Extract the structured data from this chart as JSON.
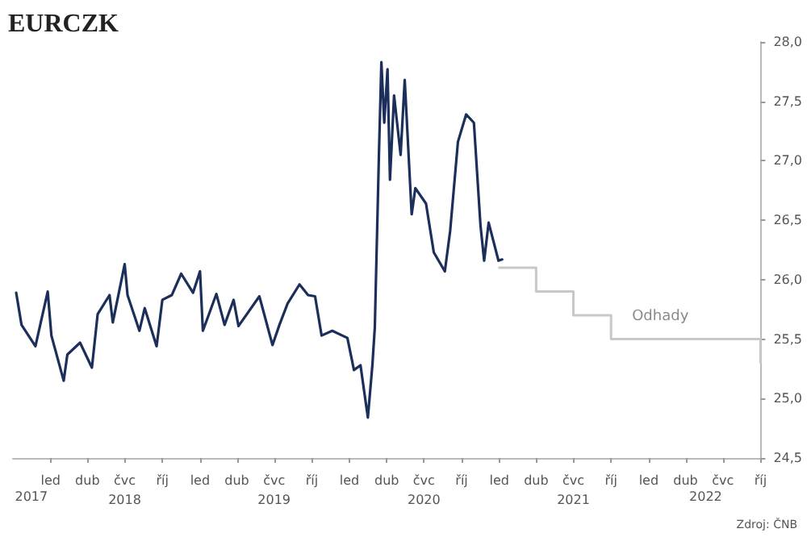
{
  "chart_data": {
    "type": "line",
    "title": "EURCZK",
    "annotations": [
      "Zdroj: ČNB"
    ],
    "xlim": [
      "2017-10-01",
      "2022-10-01"
    ],
    "xticks": [
      {
        "value": "2018-01-01",
        "label": "led"
      },
      {
        "value": "2018-04-01",
        "label": "dub"
      },
      {
        "value": "2018-07-01",
        "label": "čvc\n2018"
      },
      {
        "value": "2018-10-01",
        "label": "říj"
      },
      {
        "value": "2019-01-01",
        "label": "led"
      },
      {
        "value": "2019-04-01",
        "label": "dub"
      },
      {
        "value": "2019-07-01",
        "label": "čvc\n2019"
      },
      {
        "value": "2019-10-01",
        "label": "říj"
      },
      {
        "value": "2020-01-01",
        "label": "led"
      },
      {
        "value": "2020-04-01",
        "label": "dub"
      },
      {
        "value": "2020-07-01",
        "label": "čvc\n2020"
      },
      {
        "value": "2020-10-01",
        "label": "říj"
      },
      {
        "value": "2021-01-01",
        "label": "led"
      },
      {
        "value": "2021-04-01",
        "label": "dub"
      },
      {
        "value": "2021-07-01",
        "label": "čvc\n2021"
      },
      {
        "value": "2021-10-01",
        "label": "říj"
      },
      {
        "value": "2022-01-01",
        "label": "led"
      },
      {
        "value": "2022-04-01",
        "label": "dub"
      },
      {
        "value": "2022-07-01",
        "label": "čvc"
      },
      {
        "value": "2022-10-01",
        "label": "říj"
      }
    ],
    "x2lim": [
      "2017-10-01",
      "2022-10-01"
    ],
    "x2ticks": [
      {
        "value": "2017-11-15",
        "label": "2017"
      },
      {
        "value": "2022-05-20",
        "label": "2022"
      }
    ],
    "ylim": [
      24.5,
      28.0
    ],
    "yticks": [
      {
        "value": 24.5,
        "label": "24,5"
      },
      {
        "value": 25,
        "label": "25,0"
      },
      {
        "value": 25.5,
        "label": "25,5"
      },
      {
        "value": 26,
        "label": "26,0"
      },
      {
        "value": 26.5,
        "label": "26,5"
      },
      {
        "value": 27,
        "label": "27,0"
      },
      {
        "value": 27.5,
        "label": "27,5"
      },
      {
        "value": 28,
        "label": "28,0"
      }
    ],
    "grid": false,
    "legend": false,
    "marker": "none",
    "line_style": "solid",
    "series": [
      {
        "type": "line",
        "color": "#1b2f5a",
        "x": [
          "2017-10-09",
          "2017-10-22",
          "2017-11-25",
          "2017-12-25",
          "2018-01-03",
          "2018-02-02",
          "2018-02-11",
          "2018-03-14",
          "2018-04-12",
          "2018-04-26",
          "2018-05-25",
          "2018-06-02",
          "2018-07-01",
          "2018-07-08",
          "2018-08-06",
          "2018-08-19",
          "2018-09-17",
          "2018-10-01",
          "2018-10-24",
          "2018-11-16",
          "2018-12-15",
          "2019-01-01",
          "2019-01-08",
          "2019-02-10",
          "2019-03-02",
          "2019-03-24",
          "2019-04-05",
          "2019-05-26",
          "2019-06-27",
          "2019-07-14",
          "2019-08-03",
          "2019-09-01",
          "2019-09-22",
          "2019-10-09",
          "2019-10-25",
          "2019-11-20",
          "2019-12-27",
          "2020-01-12",
          "2020-01-28",
          "2020-02-15",
          "2020-02-26",
          "2020-03-03",
          "2020-03-13",
          "2020-03-19",
          "2020-03-26",
          "2020-04-03",
          "2020-04-09",
          "2020-04-19",
          "2020-05-05",
          "2020-05-15",
          "2020-06-01",
          "2020-06-10",
          "2020-07-06",
          "2020-07-25",
          "2020-08-21",
          "2020-09-03",
          "2020-09-22",
          "2020-10-12",
          "2020-10-31",
          "2020-11-16",
          "2020-11-25",
          "2020-12-06",
          "2020-12-30",
          "2021-01-08"
        ],
        "values": [
          25.89,
          25.62,
          25.44,
          25.9,
          25.53,
          25.15,
          25.37,
          25.47,
          25.26,
          25.71,
          25.87,
          25.64,
          26.13,
          25.87,
          25.57,
          25.76,
          25.44,
          25.83,
          25.87,
          26.05,
          25.89,
          26.07,
          25.57,
          25.88,
          25.62,
          25.83,
          25.61,
          25.86,
          25.45,
          25.62,
          25.8,
          25.96,
          25.87,
          25.86,
          25.53,
          25.57,
          25.51,
          25.24,
          25.28,
          24.84,
          25.28,
          25.6,
          27.05,
          27.83,
          27.32,
          27.77,
          26.84,
          27.55,
          27.05,
          27.68,
          26.55,
          26.77,
          26.64,
          26.23,
          26.07,
          26.41,
          27.16,
          27.39,
          27.32,
          26.46,
          26.16,
          26.48,
          26.16,
          26.17
        ]
      },
      {
        "type": "step",
        "name": "Odhady",
        "color": "#c8c8c8",
        "x": [
          "2021-01-01",
          "2021-04-01",
          "2021-07-01",
          "2021-10-01",
          "2022-10-01"
        ],
        "values": [
          26.1,
          25.9,
          25.7,
          25.5,
          25.3
        ]
      }
    ]
  }
}
